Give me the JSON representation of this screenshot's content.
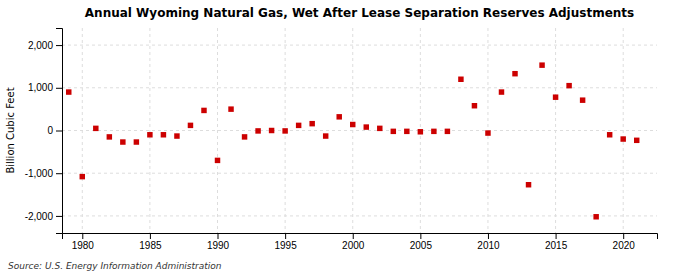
{
  "chart_data": {
    "type": "scatter",
    "title": "Annual Wyoming Natural Gas, Wet After Lease Separation Reserves Adjustments",
    "ylabel": "Billion Cubic Feet",
    "source": "Source: U.S. Energy Information Administration",
    "color": "#cc0000",
    "marker": "square",
    "grid": true,
    "x": [
      1979,
      1980,
      1981,
      1982,
      1983,
      1984,
      1985,
      1986,
      1987,
      1988,
      1989,
      1990,
      1991,
      1992,
      1993,
      1994,
      1995,
      1996,
      1997,
      1998,
      1999,
      2000,
      2001,
      2002,
      2003,
      2004,
      2005,
      2006,
      2007,
      2008,
      2009,
      2010,
      2011,
      2012,
      2013,
      2014,
      2015,
      2016,
      2017,
      2018,
      2019,
      2020,
      2021
    ],
    "values": [
      900,
      -1080,
      50,
      -150,
      -270,
      -270,
      -100,
      -100,
      -130,
      120,
      470,
      -700,
      500,
      -150,
      -10,
      0,
      -10,
      120,
      160,
      -130,
      320,
      140,
      80,
      50,
      -20,
      -20,
      -30,
      -20,
      -20,
      1200,
      580,
      -60,
      900,
      1330,
      -1270,
      1530,
      780,
      1050,
      710,
      -2020,
      -100,
      -200,
      -230
    ],
    "xlim": [
      1978.5,
      2022.5
    ],
    "xticks": [
      1980,
      1985,
      1990,
      1995,
      2000,
      2005,
      2010,
      2015,
      2020
    ],
    "ylim": [
      -2400,
      2400
    ],
    "yticks": [
      {
        "value": -2000,
        "label": "-2,000"
      },
      {
        "value": -1000,
        "label": "-1,000"
      },
      0,
      {
        "value": 1000,
        "label": "1,000"
      },
      {
        "value": 2000,
        "label": "2,000"
      }
    ]
  }
}
